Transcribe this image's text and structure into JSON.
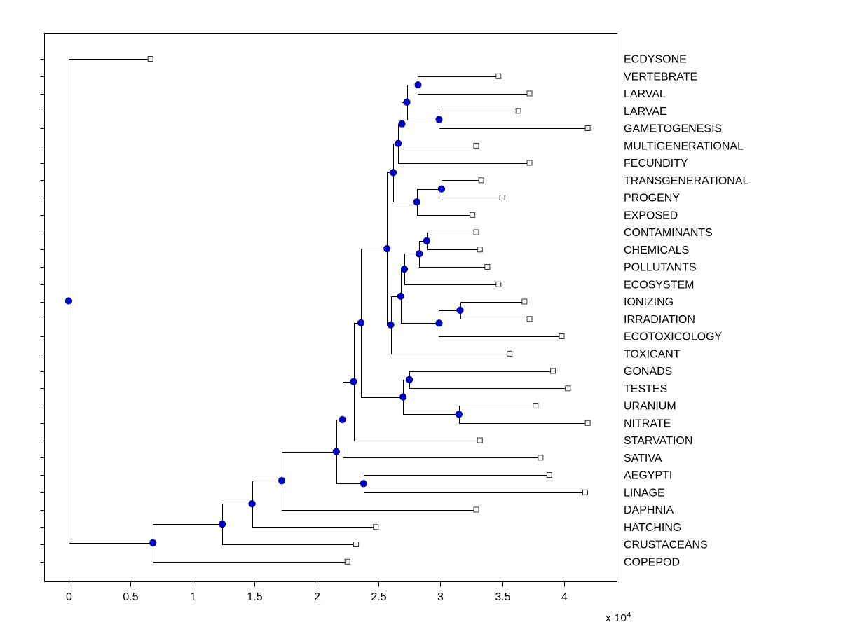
{
  "style": {
    "background": "#ffffff",
    "axis_color": "#000000",
    "branch_color": "#000000",
    "branch_dot_fill": "#0000cd",
    "branch_dot_stroke": "#000080",
    "leaf_marker_fill": "#ffffff",
    "leaf_marker_stroke": "#333333"
  },
  "chart_data": {
    "type": "dendrogram",
    "subtype": "phylogenetic-tree",
    "orientation": "left-to-right",
    "grid": false,
    "legend": false,
    "x_axis": {
      "ticks": [
        0,
        0.5,
        1,
        1.5,
        2,
        2.5,
        3,
        3.5,
        4
      ],
      "tick_labels": [
        "0",
        "0.5",
        "1",
        "1.5",
        "2",
        "2.5",
        "3",
        "3.5",
        "4"
      ],
      "range": [
        -0.2,
        4.42
      ],
      "unit_scale": 10000,
      "exponent_prefix": "x 10",
      "exponent": "4"
    },
    "leaves": [
      {
        "name": "ECDYSONE",
        "distance": 0.66
      },
      {
        "name": "VERTEBRATE",
        "distance": 3.47
      },
      {
        "name": "LARVAL",
        "distance": 3.72
      },
      {
        "name": "LARVAE",
        "distance": 3.63
      },
      {
        "name": "GAMETOGENESIS",
        "distance": 4.19
      },
      {
        "name": "MULTIGENERATIONAL",
        "distance": 3.29
      },
      {
        "name": "FECUNDITY",
        "distance": 3.72
      },
      {
        "name": "TRANSGENERATIONAL",
        "distance": 3.33
      },
      {
        "name": "PROGENY",
        "distance": 3.5
      },
      {
        "name": "EXPOSED",
        "distance": 3.26
      },
      {
        "name": "CONTAMINANTS",
        "distance": 3.29
      },
      {
        "name": "CHEMICALS",
        "distance": 3.32
      },
      {
        "name": "POLLUTANTS",
        "distance": 3.38
      },
      {
        "name": "ECOSYSTEM",
        "distance": 3.47
      },
      {
        "name": "IONIZING",
        "distance": 3.68
      },
      {
        "name": "IRRADIATION",
        "distance": 3.72
      },
      {
        "name": "ECOTOXICOLOGY",
        "distance": 3.98
      },
      {
        "name": "TOXICANT",
        "distance": 3.56
      },
      {
        "name": "GONADS",
        "distance": 3.91
      },
      {
        "name": "TESTES",
        "distance": 4.03
      },
      {
        "name": "URANIUM",
        "distance": 3.77
      },
      {
        "name": "NITRATE",
        "distance": 4.19
      },
      {
        "name": "STARVATION",
        "distance": 3.32
      },
      {
        "name": "SATIVA",
        "distance": 3.81
      },
      {
        "name": "AEGYPTI",
        "distance": 3.88
      },
      {
        "name": "LINAGE",
        "distance": 4.17
      },
      {
        "name": "DAPHNIA",
        "distance": 3.29
      },
      {
        "name": "HATCHING",
        "distance": 2.48
      },
      {
        "name": "CRUSTACEANS",
        "distance": 2.32
      },
      {
        "name": "COPEPOD",
        "distance": 2.25
      }
    ],
    "branches": [
      {
        "id": "B1",
        "distance": 2.82,
        "children": [
          "L1",
          "L2"
        ]
      },
      {
        "id": "B2",
        "distance": 2.99,
        "children": [
          "L3",
          "L4"
        ]
      },
      {
        "id": "B3",
        "distance": 2.73,
        "children": [
          "B1",
          "B2"
        ]
      },
      {
        "id": "B4",
        "distance": 2.69,
        "children": [
          "B3",
          "L5"
        ]
      },
      {
        "id": "B5",
        "distance": 2.66,
        "children": [
          "B4",
          "L6"
        ]
      },
      {
        "id": "B6",
        "distance": 3.01,
        "children": [
          "L7",
          "L8"
        ]
      },
      {
        "id": "B7",
        "distance": 2.81,
        "children": [
          "B6",
          "L9"
        ]
      },
      {
        "id": "B8",
        "distance": 2.62,
        "children": [
          "B5",
          "B7"
        ]
      },
      {
        "id": "B9",
        "distance": 2.89,
        "children": [
          "L10",
          "L11"
        ]
      },
      {
        "id": "B10",
        "distance": 2.83,
        "children": [
          "B9",
          "L12"
        ]
      },
      {
        "id": "B11",
        "distance": 2.71,
        "children": [
          "B10",
          "L13"
        ]
      },
      {
        "id": "B12",
        "distance": 3.16,
        "children": [
          "L14",
          "L15"
        ]
      },
      {
        "id": "B13",
        "distance": 2.99,
        "children": [
          "B12",
          "L16"
        ]
      },
      {
        "id": "B14",
        "distance": 2.68,
        "children": [
          "B11",
          "B13"
        ]
      },
      {
        "id": "B15",
        "distance": 2.6,
        "children": [
          "B14",
          "L17"
        ]
      },
      {
        "id": "B16",
        "distance": 2.57,
        "children": [
          "B8",
          "B15"
        ]
      },
      {
        "id": "B17",
        "distance": 2.75,
        "children": [
          "L18",
          "L19"
        ]
      },
      {
        "id": "B18",
        "distance": 3.15,
        "children": [
          "L20",
          "L21"
        ]
      },
      {
        "id": "B19",
        "distance": 2.7,
        "children": [
          "B17",
          "B18"
        ]
      },
      {
        "id": "B20",
        "distance": 2.36,
        "children": [
          "B16",
          "B19"
        ]
      },
      {
        "id": "B21",
        "distance": 2.3,
        "children": [
          "B20",
          "L22"
        ]
      },
      {
        "id": "B22",
        "distance": 2.21,
        "children": [
          "B21",
          "L23"
        ]
      },
      {
        "id": "B23",
        "distance": 2.38,
        "children": [
          "L24",
          "L25"
        ]
      },
      {
        "id": "B24",
        "distance": 2.16,
        "children": [
          "B22",
          "B23"
        ]
      },
      {
        "id": "B25",
        "distance": 1.72,
        "children": [
          "B24",
          "L26"
        ]
      },
      {
        "id": "B26",
        "distance": 1.48,
        "children": [
          "B25",
          "L27"
        ]
      },
      {
        "id": "B27",
        "distance": 1.24,
        "children": [
          "B26",
          "L28"
        ]
      },
      {
        "id": "B28",
        "distance": 0.68,
        "children": [
          "B27",
          "L29"
        ]
      },
      {
        "id": "B29",
        "distance": 0.0,
        "children": [
          "L0",
          "B28"
        ]
      }
    ]
  }
}
